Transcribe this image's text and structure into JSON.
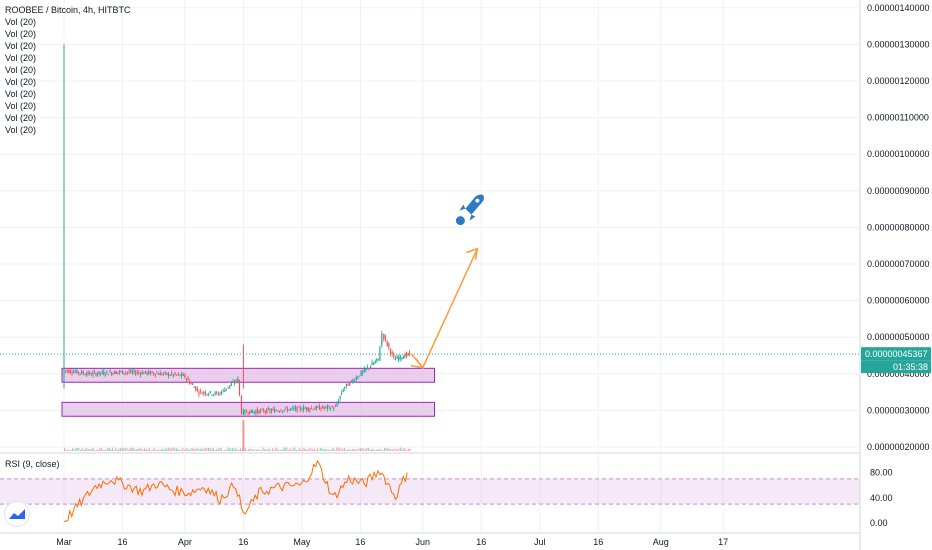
{
  "symbol": "ROOBEE / Bitcoin, 4h, HITBTC",
  "vol_labels": [
    "Vol (20)",
    "Vol (20)",
    "Vol (20)",
    "Vol (20)",
    "Vol (20)",
    "Vol (20)",
    "Vol (20)",
    "Vol (20)",
    "Vol (20)",
    "Vol (20)"
  ],
  "rsi_label": "RSI (9, close)",
  "price_badge": "0.00000045367",
  "timer_badge": "01:35:38",
  "colors": {
    "up": "#26a69a",
    "down": "#ef5350",
    "rsi": "#ff6d00",
    "arrow": "#ff9a3c",
    "zone_fill": "#e1bee7",
    "zone_border": "#9c27b0",
    "rocket": "#2e79c4",
    "badge": "#26a69a",
    "grid": "#eef0f4"
  },
  "chart_data": [
    {
      "type": "candlestick",
      "title": "ROOBEE / Bitcoin, 4h, HITBTC",
      "y_ticks": [
        "0.00000020000",
        "0.00000030000",
        "0.00000040000",
        "0.00000050000",
        "0.00000060000",
        "0.00000070000",
        "0.00000080000",
        "0.00000090000",
        "0.00000100000",
        "0.00000110000",
        "0.00000120000",
        "0.00000130000",
        "0.00000140000"
      ],
      "x_ticks": [
        "Mar",
        "16",
        "Apr",
        "16",
        "May",
        "16",
        "Jun",
        "16",
        "Jul",
        "16",
        "Aug",
        "17"
      ],
      "ylim": [
        2e-07,
        1.43e-06
      ],
      "last_price": 4.5367e-07,
      "price_path": [
        {
          "x": "Mar 1",
          "y": 4.1e-07
        },
        {
          "x": "Mar 8",
          "y": 4e-07
        },
        {
          "x": "Mar 16",
          "y": 4.05e-07
        },
        {
          "x": "Mar 24",
          "y": 4.02e-07
        },
        {
          "x": "Apr 1",
          "y": 3.95e-07
        },
        {
          "x": "Apr 5",
          "y": 3.5e-07
        },
        {
          "x": "Apr 10",
          "y": 3.45e-07
        },
        {
          "x": "Apr 15",
          "y": 3.85e-07
        },
        {
          "x": "Apr 16",
          "y": 2.95e-07
        },
        {
          "x": "Apr 24",
          "y": 3e-07
        },
        {
          "x": "May 1",
          "y": 3.05e-07
        },
        {
          "x": "May 10",
          "y": 3.08e-07
        },
        {
          "x": "May 12",
          "y": 3.6e-07
        },
        {
          "x": "May 17",
          "y": 4.05e-07
        },
        {
          "x": "May 21",
          "y": 4.4e-07
        },
        {
          "x": "May 22",
          "y": 5.1e-07
        },
        {
          "x": "May 25",
          "y": 4.4e-07
        },
        {
          "x": "May 29",
          "y": 4.5367e-07
        }
      ],
      "spikes": [
        {
          "x": "Mar 1",
          "high": 1.3e-06
        },
        {
          "x": "Apr 16",
          "high": 4.8e-07
        }
      ],
      "zones": [
        {
          "from": "Mar 1",
          "to": "Jun 4",
          "low": 3.77e-07,
          "high": 4.15e-07
        },
        {
          "from": "Mar 1",
          "to": "Jun 4",
          "low": 2.84e-07,
          "high": 3.22e-07
        }
      ],
      "projection": [
        {
          "x": "May 29",
          "y": 4.55e-07
        },
        {
          "x": "Jun 1",
          "y": 4.17e-07
        },
        {
          "x": "Jun 15",
          "y": 7.42e-07
        }
      ]
    },
    {
      "type": "line",
      "title": "RSI (9, close)",
      "y_ticks": [
        "0.00",
        "40.00",
        "80.00"
      ],
      "ylim": [
        -10,
        102
      ],
      "band": [
        30,
        70
      ],
      "series": [
        {
          "x": [
            "Mar 1",
            "Mar 5",
            "Mar 9",
            "Mar 13",
            "Mar 17",
            "Mar 21",
            "Mar 25",
            "Mar 29",
            "Apr 2",
            "Apr 6",
            "Apr 10",
            "Apr 14",
            "Apr 16",
            "Apr 20",
            "Apr 25",
            "May 1",
            "May 5",
            "May 9",
            "May 13",
            "May 17",
            "May 21",
            "May 25",
            "May 28"
          ],
          "values": [
            3,
            30,
            58,
            70,
            60,
            50,
            63,
            52,
            48,
            58,
            38,
            62,
            12,
            48,
            57,
            60,
            96,
            40,
            70,
            62,
            84,
            42,
            80
          ]
        }
      ]
    }
  ]
}
